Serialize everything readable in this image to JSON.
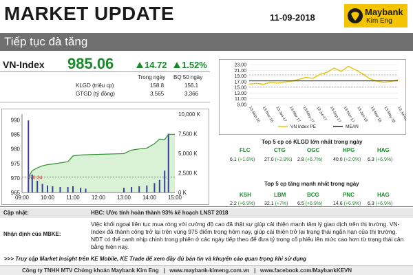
{
  "header": {
    "title": "MARKET UPDATE",
    "date": "11-09-2018",
    "logo_brand": "Maybank",
    "logo_sub": "Kim Eng"
  },
  "banner": {
    "text": "Tiếp tục đà tăng"
  },
  "index": {
    "name": "VN-Index",
    "value": "985.06",
    "change": "14.72",
    "pct": "1.52%"
  },
  "stats": {
    "col_today": "Trong ngày",
    "col_avg": "BQ 50 ngày",
    "rows": [
      {
        "label": "KLGD (triệu cp)",
        "today": "158.8",
        "avg": "156.1"
      },
      {
        "label": "GTGD (tỷ đồng)",
        "today": "3,565",
        "avg": "3,366"
      }
    ]
  },
  "chart_data": [
    {
      "type": "line",
      "title": "",
      "x_ticks": [
        "09:00",
        "10:00",
        "11:00",
        "12:00",
        "13:00",
        "14:00",
        "15:00"
      ],
      "y_ticks_left": [
        "990",
        "985",
        "980",
        "975",
        "970",
        "965"
      ],
      "y_ticks_right": [
        "10,000 K",
        "7,500 K",
        "5,000 K",
        "2,500 K",
        "0 K"
      ],
      "ylim": [
        965,
        992
      ],
      "y2lim": [
        0,
        10000
      ],
      "reference_label": "970.34",
      "reference_value": 970.34,
      "index_series": [
        [
          9.25,
          970.3
        ],
        [
          9.4,
          972.5
        ],
        [
          9.6,
          973.5
        ],
        [
          9.8,
          974.2
        ],
        [
          10.0,
          974.6
        ],
        [
          10.2,
          974.8
        ],
        [
          10.5,
          975.2
        ],
        [
          10.8,
          975.6
        ],
        [
          11.0,
          977.6
        ],
        [
          11.3,
          977.9
        ],
        [
          11.5,
          978.0
        ],
        [
          13.0,
          978.4
        ],
        [
          13.3,
          979.6
        ],
        [
          13.6,
          980.0
        ],
        [
          13.9,
          980.3
        ],
        [
          14.2,
          981.8
        ],
        [
          14.4,
          983.4
        ],
        [
          14.6,
          983.2
        ],
        [
          14.75,
          985.06
        ],
        [
          15.0,
          985.06
        ]
      ],
      "volume_series": [
        [
          9.25,
          9200
        ],
        [
          9.4,
          2300
        ],
        [
          9.6,
          1500
        ],
        [
          9.8,
          1100
        ],
        [
          10.0,
          900
        ],
        [
          10.2,
          800
        ],
        [
          10.5,
          700
        ],
        [
          10.8,
          700
        ],
        [
          11.0,
          800
        ],
        [
          11.3,
          600
        ],
        [
          11.5,
          500
        ],
        [
          13.0,
          600
        ],
        [
          13.3,
          700
        ],
        [
          13.6,
          800
        ],
        [
          13.9,
          900
        ],
        [
          14.2,
          1200
        ],
        [
          14.4,
          1600
        ],
        [
          14.6,
          2800
        ],
        [
          14.75,
          7500
        ]
      ]
    },
    {
      "type": "line",
      "title": "",
      "y_ticks": [
        "23.00",
        "21.00",
        "19.00",
        "17.00",
        "15.00",
        "13.00",
        "11.00",
        "9.00"
      ],
      "ylim": [
        9,
        23
      ],
      "x_ticks": [
        "13-Sep-16",
        "13-Nov-16",
        "13-Jan-17",
        "13-Mar-17",
        "13-May-17",
        "13-Jul-17",
        "13-Sep-17",
        "13-Nov-17",
        "13-Jan-18",
        "13-Mar-18",
        "13-May-18",
        "13-Jul-18"
      ],
      "series": [
        {
          "name": "VN Index PE",
          "color": "#e8c400",
          "values": [
            16.2,
            16.4,
            16.1,
            16.8,
            16.5,
            16.9,
            17.2,
            17.8,
            18.5,
            18.2,
            19.6,
            20.3,
            21.8,
            20.6,
            22.4,
            21.2,
            19.8,
            18.1,
            17.2,
            16.8,
            17.1,
            17.6
          ]
        },
        {
          "name": "MEAN",
          "color": "#222222",
          "values": [
            17.3,
            17.3,
            17.3,
            17.3,
            17.3,
            17.3,
            17.3,
            17.3,
            17.3,
            17.3,
            17.3,
            17.3,
            17.3,
            17.3,
            17.3,
            17.3,
            17.3,
            17.3,
            17.3,
            17.3,
            17.3,
            17.3
          ]
        }
      ],
      "bands": [
        19.4,
        15.2
      ]
    }
  ],
  "top_volume": {
    "title": "Top 5 cp có KLGD lớn nhất trong ngày",
    "items": [
      {
        "ticker": "FLC",
        "value": "6.1",
        "chg": "(+1.6%)"
      },
      {
        "ticker": "CTG",
        "value": "27.0",
        "chg": "(+2.8%)"
      },
      {
        "ticker": "OGC",
        "value": "2.8",
        "chg": "(+6.7%)"
      },
      {
        "ticker": "HPG",
        "value": "40.0",
        "chg": "(+2.0%)"
      },
      {
        "ticker": "HAG",
        "value": "6.3",
        "chg": "(+6.9%)"
      }
    ]
  },
  "top_gainers": {
    "title": "Top 5 cp tăng mạnh nhất trong ngày",
    "items": [
      {
        "ticker": "KSH",
        "value": "2.2",
        "chg": "(+6.9%)"
      },
      {
        "ticker": "LBM",
        "value": "32.1",
        "chg": "(+7%)"
      },
      {
        "ticker": "BCG",
        "value": "6.5",
        "chg": "(+6.9%)"
      },
      {
        "ticker": "PNC",
        "value": "14.6",
        "chg": "(+6.9%)"
      },
      {
        "ticker": "HAG",
        "value": "6.3",
        "chg": "(+6.9%)"
      }
    ]
  },
  "update": {
    "label": "Cập nhật:",
    "text": "HBC: Ước tính hoàn thành 93% kế hoạch LNST 2018"
  },
  "view": {
    "label": "Nhận định của MBKE:",
    "text": "Việc khối ngoại liên tục mua ròng với cường độ cao đã thật sự giúp cải thiện mạnh tâm lý giao dịch trên thị trường. VN-Index đã thành công trở lại trên vùng 975 điểm trong hôm nay, giúp cải thiện trở lại trạng thái ngắn hạn của thị trường. NĐT có thể canh nhịp chỉnh trong phiên ở các ngày tiếp theo để đưa tỷ trọng cổ phiếu lên mức cao hơn từ trạng thái cân bằng hiện nay."
  },
  "link_text": ">>> Truy cập Market Insight trên KE Mobile, KE Trade để xem đầy đủ bản tin và khuyến cáo quan trọng khi sử dụng",
  "footer": "Công ty TNHH MTV Chứng khoán Maybank Kim Eng   |   www.maybank-kimeng.com.vn   |   www.facebook.com/MaybankKEVN"
}
